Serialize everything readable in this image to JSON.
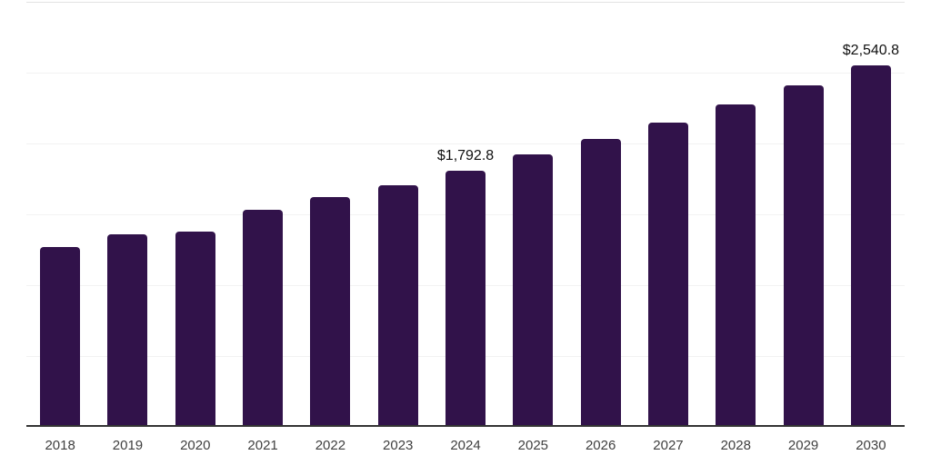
{
  "chart_data": {
    "type": "bar",
    "title": "",
    "xlabel": "",
    "ylabel": "",
    "categories": [
      "2018",
      "2019",
      "2020",
      "2021",
      "2022",
      "2023",
      "2024",
      "2025",
      "2026",
      "2027",
      "2028",
      "2029",
      "2030"
    ],
    "values": [
      1259.4,
      1345.2,
      1363.1,
      1517.0,
      1609.2,
      1691.9,
      1792.8,
      1910.0,
      2016.2,
      2137.1,
      2264.3,
      2397.8,
      2540.8
    ],
    "displayed_value_labels": {
      "2024": "$1,792.8",
      "2030": "$2,540.8"
    },
    "ylim": [
      0,
      3000
    ],
    "gridline_interval": 500,
    "grid": "horizontal only, no y-axis tick labels",
    "legend_position": "none"
  },
  "colors": {
    "bar": "#31124a",
    "axis_line": "#333333",
    "gridline": "#f2f2f2",
    "gridline_top": "#e3e3e3",
    "data_label_text": "#111111",
    "tick_text": "#404040",
    "background": "#ffffff"
  }
}
